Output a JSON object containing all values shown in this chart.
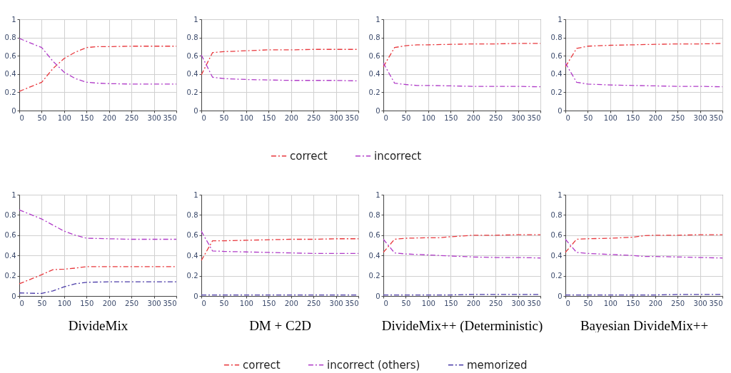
{
  "chart_data": [
    {
      "type": "line",
      "xlim": [
        0,
        350
      ],
      "ylim": [
        0,
        1
      ],
      "xticks": [
        0,
        50,
        100,
        150,
        200,
        250,
        300,
        350
      ],
      "yticks": [
        0,
        0.2,
        0.4,
        0.6,
        0.8,
        1
      ],
      "grid": true,
      "legend": "bottom",
      "line_style": "dashed",
      "series": [
        {
          "name": "correct",
          "color": "#e8383d",
          "x": [
            0,
            50,
            75,
            100,
            125,
            150,
            175,
            200,
            250,
            300,
            350
          ],
          "values": [
            0.21,
            0.31,
            0.46,
            0.57,
            0.64,
            0.69,
            0.7,
            0.7,
            0.705,
            0.705,
            0.705
          ]
        },
        {
          "name": "incorrect",
          "color": "#b03cc8",
          "x": [
            0,
            50,
            75,
            100,
            125,
            150,
            175,
            200,
            250,
            300,
            350
          ],
          "values": [
            0.79,
            0.69,
            0.54,
            0.42,
            0.35,
            0.31,
            0.3,
            0.295,
            0.29,
            0.29,
            0.29
          ]
        }
      ]
    },
    {
      "type": "line",
      "xlim": [
        0,
        350
      ],
      "ylim": [
        0,
        1
      ],
      "xticks": [
        0,
        50,
        100,
        150,
        200,
        250,
        300,
        350
      ],
      "yticks": [
        0,
        0.2,
        0.4,
        0.6,
        0.8,
        1
      ],
      "grid": true,
      "line_style": "dashed",
      "series": [
        {
          "color": "#e8383d",
          "x": [
            0,
            25,
            50,
            100,
            150,
            200,
            250,
            300,
            350
          ],
          "values": [
            0.39,
            0.635,
            0.645,
            0.655,
            0.665,
            0.665,
            0.67,
            0.67,
            0.67
          ]
        },
        {
          "color": "#b03cc8",
          "x": [
            0,
            25,
            50,
            100,
            150,
            200,
            250,
            300,
            350
          ],
          "values": [
            0.61,
            0.365,
            0.35,
            0.34,
            0.335,
            0.33,
            0.33,
            0.33,
            0.325
          ]
        }
      ]
    },
    {
      "type": "line",
      "xlim": [
        0,
        350
      ],
      "ylim": [
        0,
        1
      ],
      "xticks": [
        0,
        50,
        100,
        150,
        200,
        250,
        300,
        350
      ],
      "yticks": [
        0,
        0.2,
        0.4,
        0.6,
        0.8,
        1
      ],
      "grid": true,
      "line_style": "dashed",
      "series": [
        {
          "color": "#e8383d",
          "x": [
            0,
            25,
            50,
            75,
            100,
            150,
            200,
            250,
            300,
            350
          ],
          "values": [
            0.48,
            0.69,
            0.71,
            0.72,
            0.72,
            0.725,
            0.73,
            0.73,
            0.735,
            0.735
          ]
        },
        {
          "color": "#b03cc8",
          "x": [
            0,
            25,
            50,
            75,
            100,
            150,
            200,
            250,
            300,
            350
          ],
          "values": [
            0.52,
            0.3,
            0.285,
            0.275,
            0.275,
            0.27,
            0.265,
            0.265,
            0.265,
            0.26
          ]
        }
      ]
    },
    {
      "type": "line",
      "xlim": [
        0,
        350
      ],
      "ylim": [
        0,
        1
      ],
      "xticks": [
        0,
        50,
        100,
        150,
        200,
        250,
        300,
        350
      ],
      "yticks": [
        0,
        0.2,
        0.4,
        0.6,
        0.8,
        1
      ],
      "grid": true,
      "line_style": "dashed",
      "series": [
        {
          "color": "#e8383d",
          "x": [
            0,
            25,
            50,
            100,
            150,
            200,
            250,
            300,
            350
          ],
          "values": [
            0.48,
            0.68,
            0.705,
            0.715,
            0.72,
            0.725,
            0.73,
            0.73,
            0.735
          ]
        },
        {
          "color": "#b03cc8",
          "x": [
            0,
            25,
            50,
            100,
            150,
            200,
            250,
            300,
            350
          ],
          "values": [
            0.52,
            0.31,
            0.29,
            0.28,
            0.275,
            0.27,
            0.265,
            0.265,
            0.26
          ]
        }
      ]
    },
    {
      "type": "line",
      "xlabel": "DivideMix",
      "xlim": [
        0,
        350
      ],
      "ylim": [
        0,
        1
      ],
      "xticks": [
        0,
        50,
        100,
        150,
        200,
        250,
        300,
        350
      ],
      "yticks": [
        0,
        0.2,
        0.4,
        0.6,
        0.8,
        1
      ],
      "grid": true,
      "legend": "bottom",
      "line_style": "dashed",
      "series": [
        {
          "name": "correct",
          "color": "#e8383d",
          "x": [
            0,
            50,
            75,
            100,
            125,
            150,
            200,
            250,
            300,
            350
          ],
          "values": [
            0.12,
            0.21,
            0.26,
            0.265,
            0.275,
            0.29,
            0.29,
            0.29,
            0.29,
            0.29
          ]
        },
        {
          "name": "incorrect (others)",
          "color": "#b03cc8",
          "x": [
            0,
            50,
            75,
            100,
            125,
            150,
            200,
            250,
            300,
            350
          ],
          "values": [
            0.85,
            0.76,
            0.7,
            0.64,
            0.6,
            0.57,
            0.565,
            0.56,
            0.56,
            0.56
          ]
        },
        {
          "name": "memorized",
          "color": "#4b3ca8",
          "x": [
            0,
            50,
            75,
            100,
            125,
            150,
            200,
            250,
            300,
            350
          ],
          "values": [
            0.03,
            0.025,
            0.05,
            0.09,
            0.12,
            0.135,
            0.14,
            0.14,
            0.14,
            0.14
          ]
        }
      ]
    },
    {
      "type": "line",
      "xlabel": "DM + C2D",
      "xlim": [
        0,
        350
      ],
      "ylim": [
        0,
        1
      ],
      "xticks": [
        0,
        50,
        100,
        150,
        200,
        250,
        300,
        350
      ],
      "yticks": [
        0,
        0.2,
        0.4,
        0.6,
        0.8,
        1
      ],
      "grid": true,
      "line_style": "dashed",
      "series": [
        {
          "color": "#e8383d",
          "x": [
            0,
            25,
            50,
            100,
            150,
            200,
            250,
            300,
            350
          ],
          "values": [
            0.35,
            0.545,
            0.545,
            0.55,
            0.555,
            0.56,
            0.56,
            0.565,
            0.565
          ]
        },
        {
          "color": "#b03cc8",
          "x": [
            0,
            25,
            50,
            100,
            150,
            200,
            250,
            300,
            350
          ],
          "values": [
            0.64,
            0.445,
            0.44,
            0.435,
            0.43,
            0.425,
            0.42,
            0.42,
            0.42
          ]
        },
        {
          "color": "#4b3ca8",
          "x": [
            0,
            25,
            50,
            100,
            150,
            200,
            250,
            300,
            350
          ],
          "values": [
            0.01,
            0.01,
            0.01,
            0.01,
            0.01,
            0.01,
            0.01,
            0.01,
            0.01
          ]
        }
      ]
    },
    {
      "type": "line",
      "xlabel": "DivideMix++ (Deterministic)",
      "xlim": [
        0,
        350
      ],
      "ylim": [
        0,
        1
      ],
      "xticks": [
        0,
        50,
        100,
        150,
        200,
        250,
        300,
        350
      ],
      "yticks": [
        0,
        0.2,
        0.4,
        0.6,
        0.8,
        1
      ],
      "grid": true,
      "line_style": "dashed",
      "series": [
        {
          "color": "#e8383d",
          "x": [
            0,
            25,
            50,
            100,
            125,
            150,
            200,
            250,
            300,
            350
          ],
          "values": [
            0.43,
            0.56,
            0.57,
            0.575,
            0.575,
            0.585,
            0.6,
            0.6,
            0.605,
            0.605
          ]
        },
        {
          "color": "#b03cc8",
          "x": [
            0,
            25,
            50,
            100,
            125,
            150,
            200,
            250,
            300,
            350
          ],
          "values": [
            0.56,
            0.425,
            0.415,
            0.405,
            0.4,
            0.395,
            0.385,
            0.38,
            0.38,
            0.375
          ]
        },
        {
          "color": "#4b3ca8",
          "x": [
            0,
            25,
            50,
            100,
            125,
            150,
            200,
            250,
            300,
            350
          ],
          "values": [
            0.01,
            0.01,
            0.01,
            0.01,
            0.01,
            0.01,
            0.015,
            0.015,
            0.015,
            0.015
          ]
        }
      ]
    },
    {
      "type": "line",
      "xlabel": "Bayesian DivideMix++",
      "xlim": [
        0,
        350
      ],
      "ylim": [
        0,
        1
      ],
      "xticks": [
        0,
        50,
        100,
        150,
        200,
        250,
        300,
        350
      ],
      "yticks": [
        0,
        0.2,
        0.4,
        0.6,
        0.8,
        1
      ],
      "grid": true,
      "line_style": "dashed",
      "series": [
        {
          "color": "#e8383d",
          "x": [
            0,
            25,
            50,
            100,
            150,
            175,
            200,
            250,
            300,
            350
          ],
          "values": [
            0.43,
            0.56,
            0.565,
            0.57,
            0.58,
            0.595,
            0.6,
            0.6,
            0.605,
            0.605
          ]
        },
        {
          "color": "#b03cc8",
          "x": [
            0,
            25,
            50,
            100,
            150,
            175,
            200,
            250,
            300,
            350
          ],
          "values": [
            0.56,
            0.43,
            0.42,
            0.41,
            0.4,
            0.39,
            0.39,
            0.385,
            0.38,
            0.375
          ]
        },
        {
          "color": "#4b3ca8",
          "x": [
            0,
            25,
            50,
            100,
            150,
            175,
            200,
            250,
            300,
            350
          ],
          "values": [
            0.01,
            0.01,
            0.01,
            0.01,
            0.01,
            0.01,
            0.01,
            0.015,
            0.015,
            0.015
          ]
        }
      ]
    }
  ]
}
